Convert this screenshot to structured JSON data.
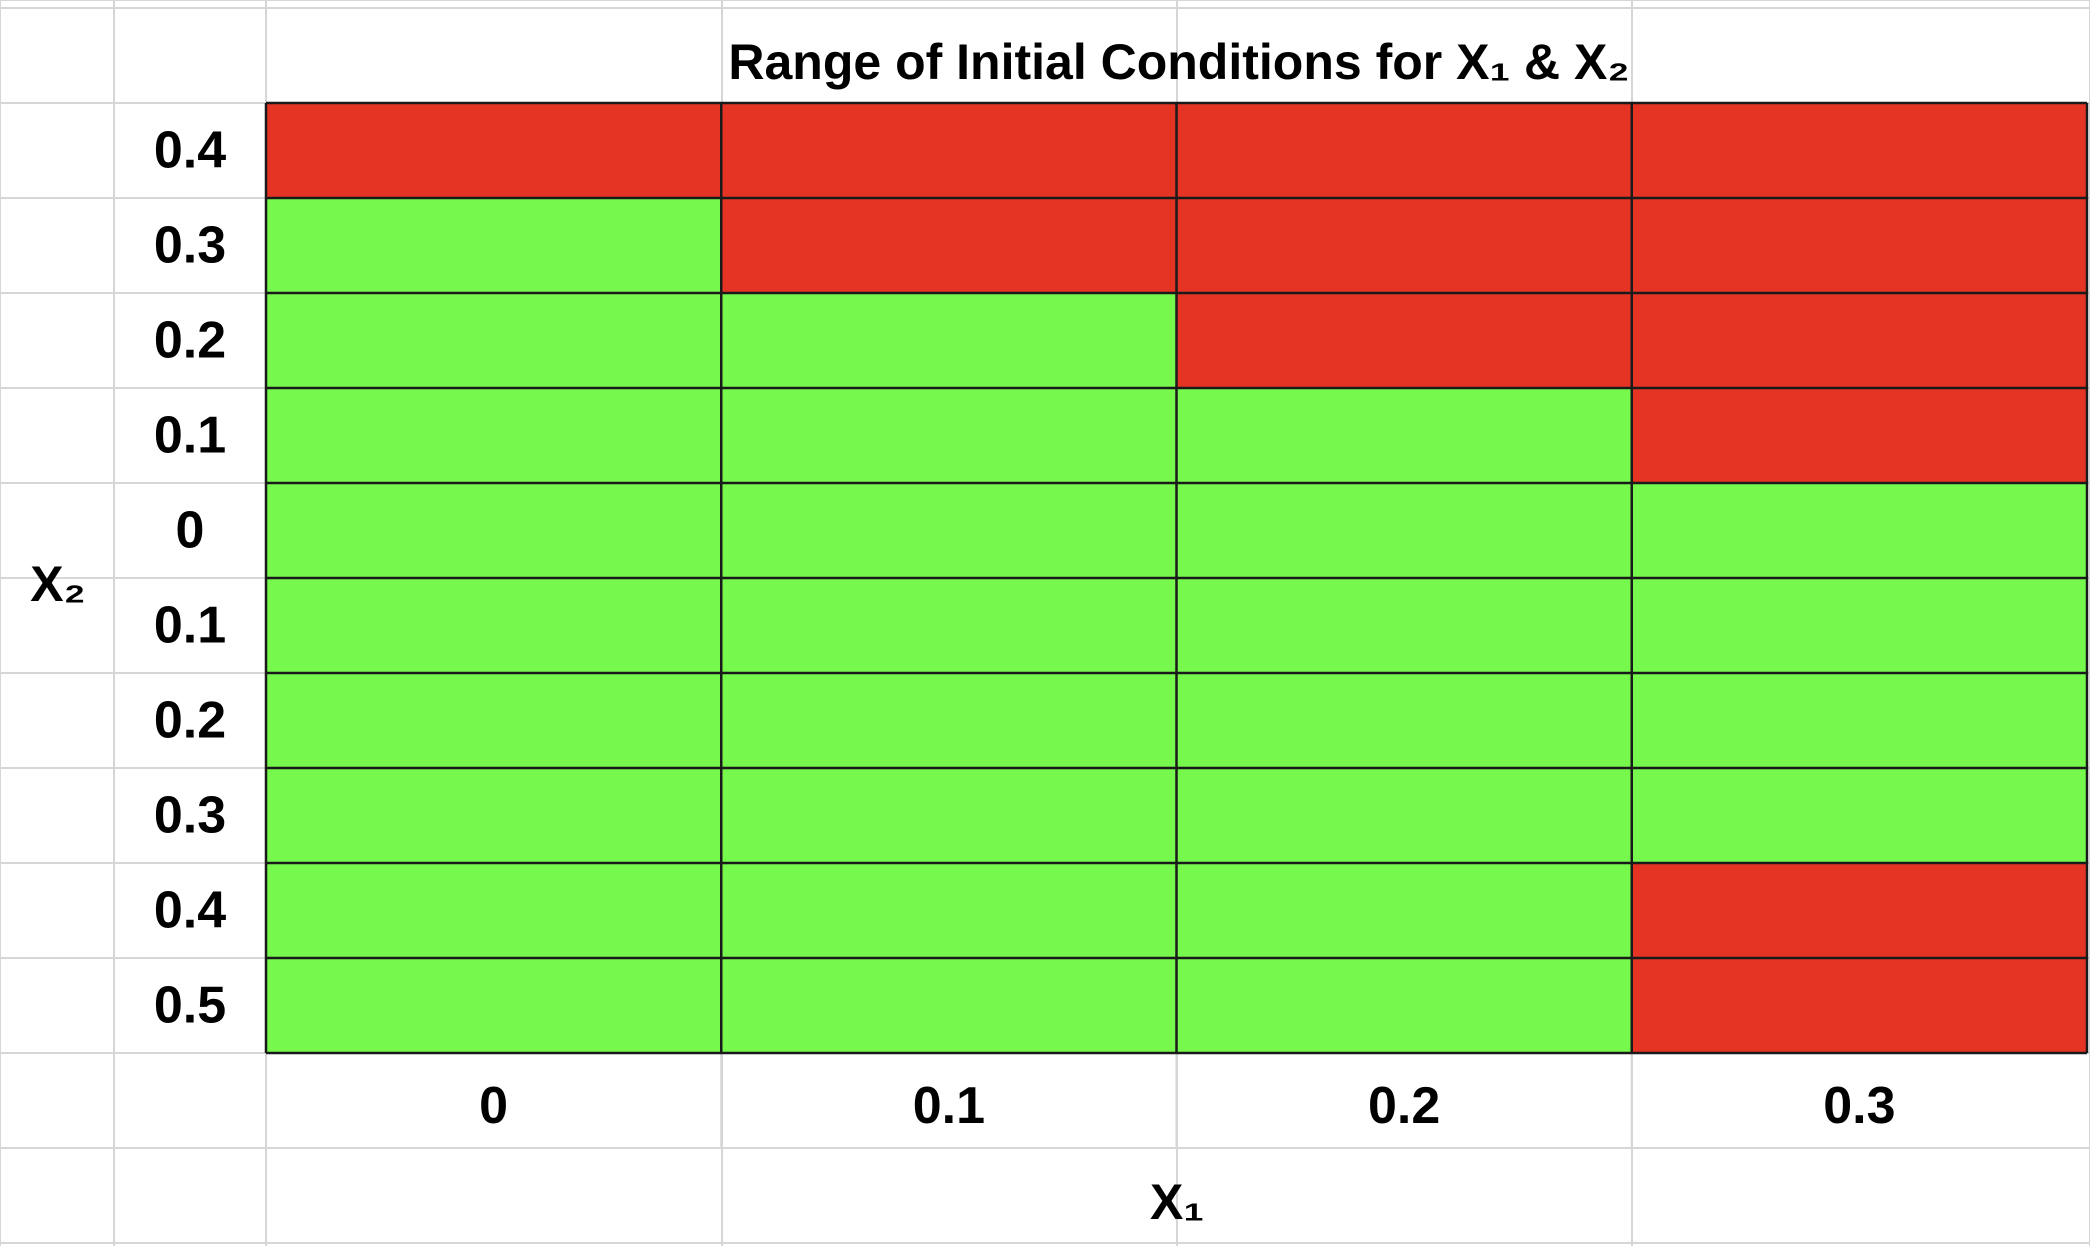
{
  "chart_data": {
    "type": "heatmap",
    "title": "Range of Initial Conditions for X₁ & X₂",
    "xlabel": "X₁",
    "ylabel": "X₂",
    "x_categories": [
      "0",
      "0.1",
      "0.2",
      "0.3"
    ],
    "y_categories": [
      "0.4",
      "0.3",
      "0.2",
      "0.1",
      "0",
      "0.1",
      "0.2",
      "0.3",
      "0.4",
      "0.5"
    ],
    "cells": [
      [
        "red",
        "red",
        "red",
        "red"
      ],
      [
        "green",
        "red",
        "red",
        "red"
      ],
      [
        "green",
        "green",
        "red",
        "red"
      ],
      [
        "green",
        "green",
        "green",
        "red"
      ],
      [
        "green",
        "green",
        "green",
        "green"
      ],
      [
        "green",
        "green",
        "green",
        "green"
      ],
      [
        "green",
        "green",
        "green",
        "green"
      ],
      [
        "green",
        "green",
        "green",
        "green"
      ],
      [
        "green",
        "green",
        "green",
        "red"
      ],
      [
        "green",
        "green",
        "green",
        "red"
      ]
    ],
    "colors": {
      "red": "#e53424",
      "green": "#76f94c",
      "cell_border": "#1a1a1a",
      "sheet_grid": "#d6d6d6"
    },
    "grid": true,
    "legend": "none"
  }
}
